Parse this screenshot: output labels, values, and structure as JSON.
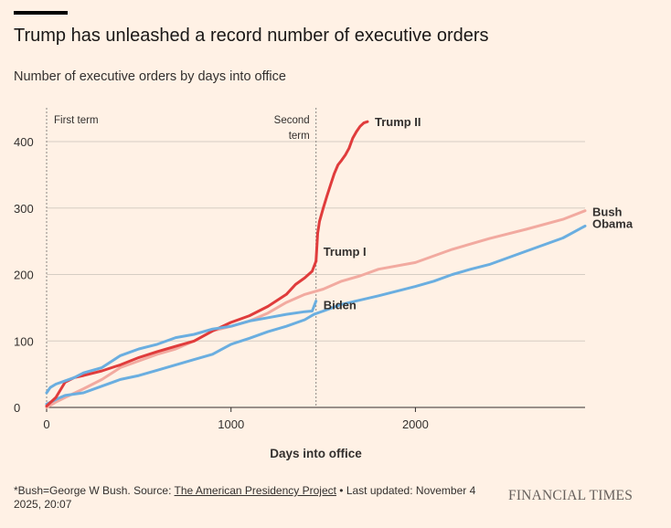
{
  "title": "Trump has unleashed a record number of executive orders",
  "subtitle": "Number of executive orders by days into office",
  "footnote": {
    "prefix": "*Bush=George W Bush. Source: ",
    "source": "The American Presidency Project",
    "suffix": " • Last updated: November 4 2025, 20:07"
  },
  "brand": "FINANCIAL TIMES",
  "colors": {
    "background": "#fff1e5",
    "trump": "#e03c3c",
    "bush": "#f2aaa0",
    "obama": "#6aaee0",
    "biden": "#6aaee0",
    "grid": "#d6cdc3",
    "marker_line": "#8a8581"
  },
  "chart_data": {
    "type": "line",
    "xlabel": "Days into office",
    "ylabel": "",
    "xlim": [
      0,
      2920
    ],
    "ylim": [
      0,
      430
    ],
    "x_ticks": [
      0,
      1000,
      2000
    ],
    "y_ticks": [
      0,
      100,
      200,
      300,
      400
    ],
    "markers": [
      {
        "x": 0,
        "label": "First term"
      },
      {
        "x": 1461,
        "label": "Second term"
      }
    ],
    "series": [
      {
        "name": "Bush",
        "color": "#f2aaa0",
        "points": [
          [
            0,
            0
          ],
          [
            50,
            8
          ],
          [
            100,
            15
          ],
          [
            200,
            28
          ],
          [
            300,
            42
          ],
          [
            400,
            60
          ],
          [
            500,
            70
          ],
          [
            600,
            80
          ],
          [
            700,
            88
          ],
          [
            800,
            100
          ],
          [
            900,
            115
          ],
          [
            1000,
            122
          ],
          [
            1100,
            130
          ],
          [
            1200,
            142
          ],
          [
            1300,
            158
          ],
          [
            1400,
            170
          ],
          [
            1500,
            178
          ],
          [
            1600,
            190
          ],
          [
            1700,
            198
          ],
          [
            1800,
            208
          ],
          [
            2000,
            218
          ],
          [
            2200,
            238
          ],
          [
            2400,
            254
          ],
          [
            2600,
            268
          ],
          [
            2800,
            283
          ],
          [
            2920,
            296
          ]
        ]
      },
      {
        "name": "Obama",
        "color": "#6aaee0",
        "points": [
          [
            0,
            5
          ],
          [
            50,
            12
          ],
          [
            100,
            18
          ],
          [
            200,
            22
          ],
          [
            300,
            32
          ],
          [
            400,
            42
          ],
          [
            500,
            48
          ],
          [
            600,
            56
          ],
          [
            700,
            64
          ],
          [
            800,
            72
          ],
          [
            900,
            80
          ],
          [
            1000,
            95
          ],
          [
            1100,
            104
          ],
          [
            1200,
            114
          ],
          [
            1300,
            122
          ],
          [
            1400,
            132
          ],
          [
            1450,
            140
          ],
          [
            1500,
            145
          ],
          [
            1600,
            155
          ],
          [
            1800,
            168
          ],
          [
            2000,
            182
          ],
          [
            2100,
            190
          ],
          [
            2200,
            200
          ],
          [
            2300,
            208
          ],
          [
            2400,
            215
          ],
          [
            2600,
            235
          ],
          [
            2800,
            255
          ],
          [
            2920,
            273
          ]
        ]
      },
      {
        "name": "Trump I",
        "color": "#e03c3c",
        "points": [
          [
            0,
            2
          ],
          [
            50,
            15
          ],
          [
            100,
            38
          ],
          [
            150,
            45
          ],
          [
            200,
            48
          ],
          [
            300,
            55
          ],
          [
            400,
            64
          ],
          [
            500,
            75
          ],
          [
            600,
            84
          ],
          [
            700,
            92
          ],
          [
            800,
            100
          ],
          [
            900,
            115
          ],
          [
            1000,
            128
          ],
          [
            1100,
            138
          ],
          [
            1200,
            152
          ],
          [
            1300,
            170
          ],
          [
            1350,
            185
          ],
          [
            1400,
            195
          ],
          [
            1440,
            205
          ],
          [
            1461,
            220
          ]
        ]
      },
      {
        "name": "Trump II",
        "color": "#e03c3c",
        "points": [
          [
            1461,
            220
          ],
          [
            1470,
            262
          ],
          [
            1480,
            280
          ],
          [
            1500,
            300
          ],
          [
            1520,
            318
          ],
          [
            1540,
            335
          ],
          [
            1560,
            352
          ],
          [
            1580,
            365
          ],
          [
            1600,
            372
          ],
          [
            1620,
            380
          ],
          [
            1640,
            390
          ],
          [
            1660,
            405
          ],
          [
            1680,
            415
          ],
          [
            1700,
            423
          ],
          [
            1720,
            428
          ],
          [
            1740,
            430
          ]
        ]
      },
      {
        "name": "Biden",
        "color": "#6aaee0",
        "points": [
          [
            0,
            22
          ],
          [
            20,
            30
          ],
          [
            50,
            35
          ],
          [
            100,
            40
          ],
          [
            150,
            45
          ],
          [
            200,
            52
          ],
          [
            300,
            60
          ],
          [
            400,
            78
          ],
          [
            500,
            88
          ],
          [
            600,
            95
          ],
          [
            700,
            105
          ],
          [
            800,
            110
          ],
          [
            900,
            118
          ],
          [
            1000,
            122
          ],
          [
            1100,
            130
          ],
          [
            1200,
            135
          ],
          [
            1300,
            140
          ],
          [
            1400,
            144
          ],
          [
            1440,
            145
          ],
          [
            1461,
            160
          ]
        ]
      }
    ],
    "labels": [
      {
        "text": "Trump II",
        "series": "Trump II"
      },
      {
        "text": "Trump I",
        "series": "Trump I"
      },
      {
        "text": "Biden",
        "series": "Biden"
      },
      {
        "text": "Bush",
        "series": "Bush"
      },
      {
        "text": "Obama",
        "series": "Obama"
      }
    ]
  }
}
